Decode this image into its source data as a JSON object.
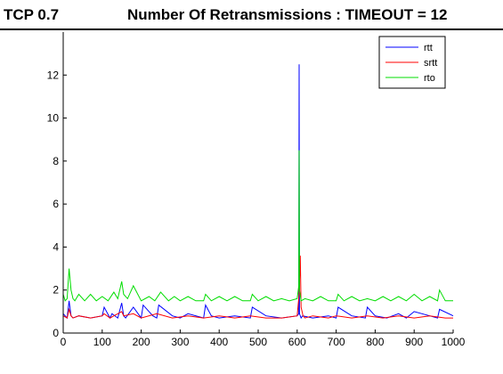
{
  "header": {
    "left_label": "TCP 0.7",
    "title": "Number Of Retransmissions : TIMEOUT = 12"
  },
  "chart_data": {
    "type": "line",
    "title": "Number Of Retransmissions : TIMEOUT = 12",
    "xlabel": "",
    "ylabel": "",
    "xlim": [
      0,
      1000
    ],
    "ylim": [
      0,
      14
    ],
    "xticks": [
      0,
      100,
      200,
      300,
      400,
      500,
      600,
      700,
      800,
      900,
      1000
    ],
    "yticks": [
      0,
      2,
      4,
      6,
      8,
      10,
      12
    ],
    "grid": false,
    "legend_position": "top-right",
    "series": [
      {
        "name": "rtt",
        "color": "#0000ff",
        "x": [
          0,
          10,
          15,
          20,
          25,
          40,
          70,
          100,
          105,
          120,
          125,
          140,
          150,
          155,
          160,
          180,
          200,
          205,
          230,
          240,
          245,
          280,
          300,
          320,
          360,
          365,
          380,
          400,
          440,
          480,
          485,
          520,
          560,
          600,
          604,
          605,
          606,
          610,
          614,
          640,
          680,
          700,
          705,
          740,
          775,
          780,
          800,
          830,
          860,
          880,
          900,
          940,
          960,
          965,
          1000
        ],
        "y": [
          0.9,
          0.7,
          1.5,
          0.8,
          0.7,
          0.8,
          0.7,
          0.8,
          1.2,
          0.7,
          0.9,
          0.7,
          1.4,
          0.8,
          0.7,
          1.2,
          0.7,
          1.3,
          0.8,
          0.7,
          1.3,
          0.8,
          0.7,
          0.9,
          0.7,
          1.3,
          0.8,
          0.7,
          0.8,
          0.7,
          1.2,
          0.8,
          0.7,
          0.8,
          0.9,
          12.5,
          0.9,
          0.7,
          0.8,
          0.7,
          0.8,
          0.7,
          1.2,
          0.8,
          0.7,
          1.2,
          0.8,
          0.7,
          0.9,
          0.7,
          1.0,
          0.8,
          0.7,
          1.1,
          0.8
        ]
      },
      {
        "name": "srtt",
        "color": "#ff0000",
        "x": [
          0,
          10,
          15,
          20,
          25,
          40,
          70,
          100,
          105,
          120,
          150,
          155,
          180,
          200,
          240,
          280,
          320,
          360,
          400,
          440,
          480,
          520,
          560,
          600,
          605,
          608,
          610,
          615,
          620,
          640,
          680,
          700,
          740,
          780,
          820,
          860,
          900,
          940,
          980,
          1000
        ],
        "y": [
          0.8,
          0.7,
          1.1,
          0.8,
          0.7,
          0.8,
          0.7,
          0.8,
          0.9,
          0.7,
          1.0,
          0.8,
          0.9,
          0.7,
          0.9,
          0.7,
          0.8,
          0.7,
          0.8,
          0.7,
          0.8,
          0.7,
          0.7,
          0.8,
          1.8,
          3.6,
          1.2,
          0.8,
          0.7,
          0.8,
          0.7,
          0.8,
          0.7,
          0.8,
          0.7,
          0.8,
          0.7,
          0.8,
          0.7,
          0.7
        ]
      },
      {
        "name": "rto",
        "color": "#00dd00",
        "x": [
          0,
          5,
          10,
          15,
          20,
          25,
          30,
          40,
          55,
          70,
          85,
          100,
          115,
          130,
          140,
          150,
          155,
          165,
          180,
          200,
          220,
          235,
          250,
          270,
          285,
          300,
          320,
          340,
          360,
          365,
          380,
          400,
          420,
          440,
          460,
          480,
          485,
          500,
          520,
          540,
          560,
          580,
          600,
          604,
          605,
          606,
          610,
          620,
          640,
          660,
          680,
          700,
          705,
          720,
          740,
          760,
          780,
          800,
          820,
          840,
          860,
          880,
          900,
          920,
          940,
          960,
          965,
          980,
          1000
        ],
        "y": [
          1.8,
          1.5,
          1.6,
          3.0,
          2.0,
          1.6,
          1.5,
          1.8,
          1.5,
          1.8,
          1.5,
          1.7,
          1.5,
          1.9,
          1.6,
          2.4,
          1.8,
          1.6,
          2.2,
          1.5,
          1.7,
          1.5,
          1.9,
          1.5,
          1.7,
          1.5,
          1.7,
          1.5,
          1.5,
          1.8,
          1.5,
          1.7,
          1.5,
          1.7,
          1.5,
          1.5,
          1.8,
          1.5,
          1.7,
          1.5,
          1.6,
          1.5,
          1.6,
          2.2,
          8.5,
          2.0,
          1.5,
          1.6,
          1.5,
          1.7,
          1.5,
          1.5,
          1.8,
          1.5,
          1.7,
          1.5,
          1.6,
          1.5,
          1.7,
          1.5,
          1.7,
          1.5,
          1.8,
          1.5,
          1.7,
          1.5,
          2.0,
          1.5,
          1.5
        ]
      }
    ]
  }
}
